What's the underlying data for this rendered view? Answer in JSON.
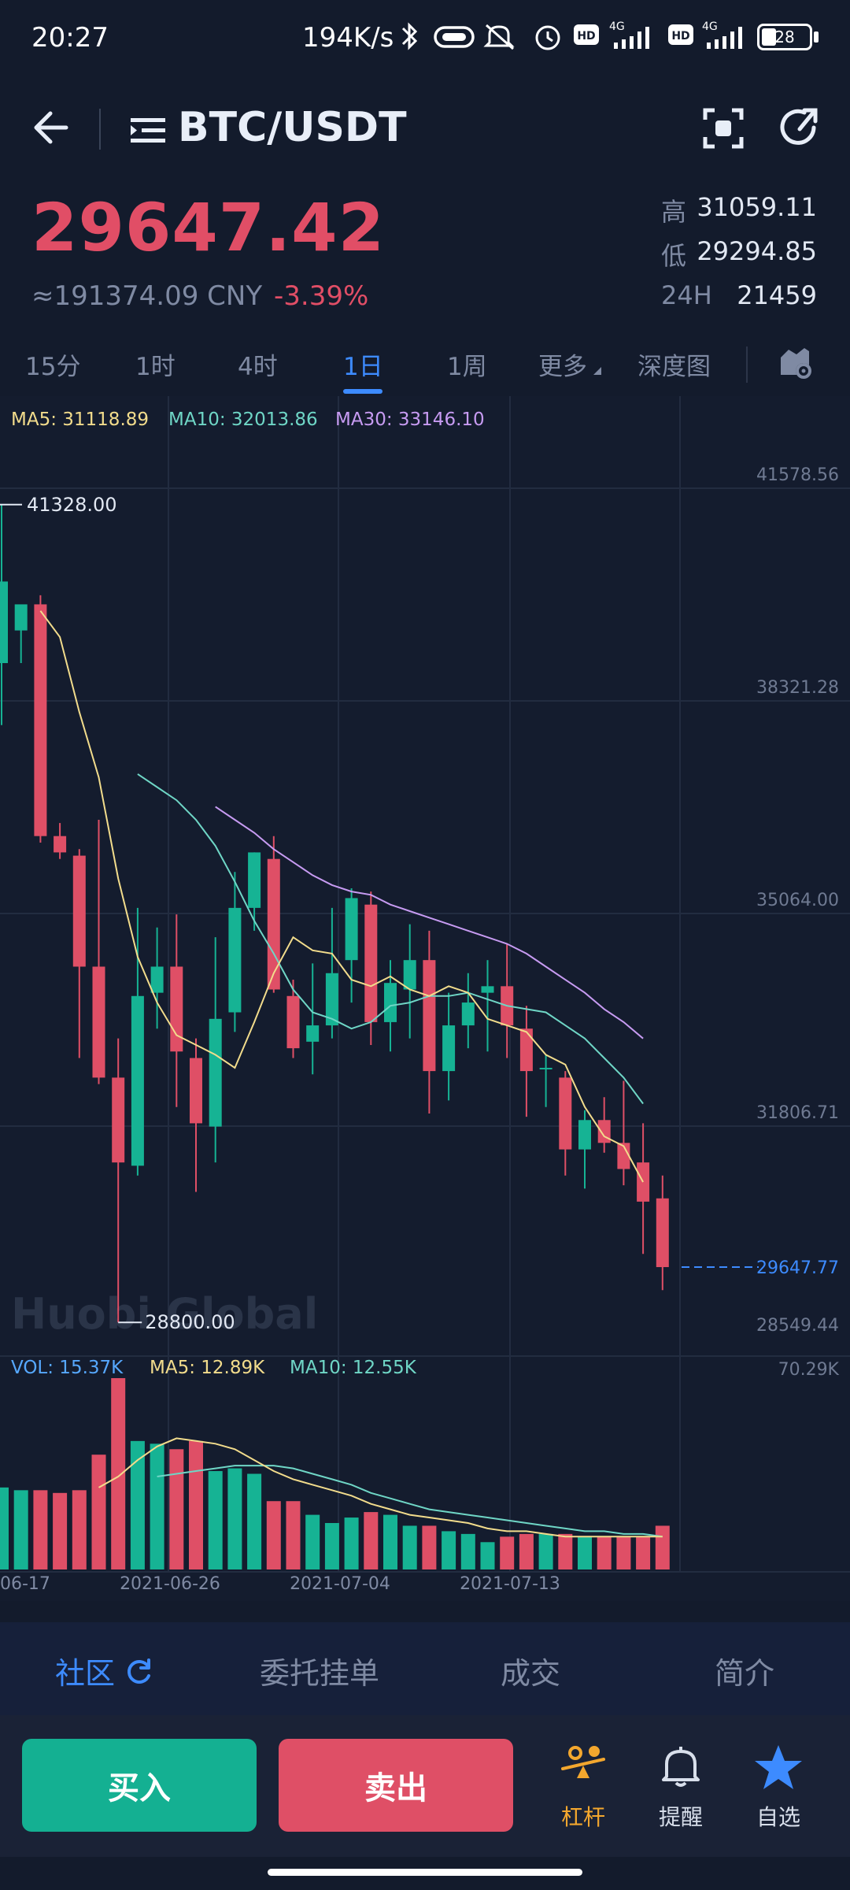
{
  "status_bar": {
    "time": "20:27",
    "net_speed": "194K/s",
    "battery": "28",
    "icons": [
      "bluetooth-icon",
      "vr-icon",
      "mute-icon",
      "alarm-icon",
      "hd-icon",
      "signal-4g-icon",
      "hd-icon",
      "signal-4g-icon",
      "battery-icon"
    ]
  },
  "header": {
    "pair": "BTC/USDT",
    "icons": [
      "back-arrow-icon",
      "menu-lines-icon",
      "scan-icon",
      "share-icon"
    ]
  },
  "price": {
    "last": "29647.42",
    "cny": "≈191374.09 CNY",
    "change": "-3.39%",
    "high_label": "高",
    "high": "31059.11",
    "low_label": "低",
    "low": "29294.85",
    "vol_label": "24H",
    "vol": "21459"
  },
  "interval_tabs": [
    {
      "label": "15分",
      "active": false
    },
    {
      "label": "1时",
      "active": false
    },
    {
      "label": "4时",
      "active": false
    },
    {
      "label": "1日",
      "active": true
    },
    {
      "label": "1周",
      "active": false
    },
    {
      "label": "更多",
      "active": false
    },
    {
      "label": "深度图",
      "active": false
    }
  ],
  "chart": {
    "ma_legend": {
      "ma5": "MA5: 31118.89",
      "ma10": "MA10: 32013.86",
      "ma30": "MA30: 33146.10"
    },
    "vol_legend": {
      "vol": "VOL: 15.37K",
      "ma5": "MA5: 12.89K",
      "ma10": "MA10: 12.55K"
    },
    "watermark": "Huobi Global",
    "max_label": "41328.00",
    "min_label": "28800.00",
    "current_label": "29647.77",
    "vol_axis_max": "70.29K",
    "colors": {
      "up": "#16b394",
      "down": "#df4f66",
      "ma5": "#f2dc8c",
      "ma10": "#6fd6c6",
      "ma30": "#c79bf2",
      "grid": "#222c40",
      "current": "#3d8bff"
    }
  },
  "chart_data": {
    "type": "candlestick",
    "y_ticks": [
      "41578.56",
      "38321.28",
      "35064.00",
      "31806.71",
      "28549.44"
    ],
    "ylim": [
      28549.44,
      41578.56
    ],
    "x_tick_labels": [
      "06-17",
      "2021-06-26",
      "2021-07-04",
      "2021-07-13"
    ],
    "candles": [
      {
        "o": 38900,
        "h": 41328,
        "l": 37950,
        "c": 40150
      },
      {
        "o": 39400,
        "h": 39780,
        "l": 38900,
        "c": 39800
      },
      {
        "o": 39800,
        "h": 39940,
        "l": 36150,
        "c": 36250
      },
      {
        "o": 36250,
        "h": 36450,
        "l": 35900,
        "c": 36000
      },
      {
        "o": 35950,
        "h": 36050,
        "l": 32850,
        "c": 34250
      },
      {
        "o": 34250,
        "h": 36500,
        "l": 32450,
        "c": 32550
      },
      {
        "o": 32550,
        "h": 33150,
        "l": 28800,
        "c": 31250
      },
      {
        "o": 31200,
        "h": 35150,
        "l": 31050,
        "c": 33800
      },
      {
        "o": 33850,
        "h": 34850,
        "l": 33300,
        "c": 34250
      },
      {
        "o": 34250,
        "h": 35050,
        "l": 32100,
        "c": 32950
      },
      {
        "o": 32850,
        "h": 33150,
        "l": 30800,
        "c": 31850
      },
      {
        "o": 31800,
        "h": 34700,
        "l": 31250,
        "c": 33450
      },
      {
        "o": 33550,
        "h": 35700,
        "l": 33250,
        "c": 35150
      },
      {
        "o": 35150,
        "h": 36000,
        "l": 34800,
        "c": 36000
      },
      {
        "o": 35900,
        "h": 36250,
        "l": 33850,
        "c": 33900
      },
      {
        "o": 33800,
        "h": 34050,
        "l": 32850,
        "c": 33000
      },
      {
        "o": 33100,
        "h": 34300,
        "l": 32600,
        "c": 33350
      },
      {
        "o": 33350,
        "h": 35150,
        "l": 33150,
        "c": 34150
      },
      {
        "o": 34350,
        "h": 35450,
        "l": 33700,
        "c": 35300
      },
      {
        "o": 35200,
        "h": 35400,
        "l": 33050,
        "c": 33400
      },
      {
        "o": 33400,
        "h": 34350,
        "l": 32950,
        "c": 34000
      },
      {
        "o": 33900,
        "h": 34900,
        "l": 33150,
        "c": 34350
      },
      {
        "o": 34350,
        "h": 34800,
        "l": 32000,
        "c": 32650
      },
      {
        "o": 32650,
        "h": 33850,
        "l": 32200,
        "c": 33350
      },
      {
        "o": 33350,
        "h": 34150,
        "l": 33000,
        "c": 33700
      },
      {
        "o": 33850,
        "h": 34350,
        "l": 32950,
        "c": 33950
      },
      {
        "o": 33950,
        "h": 34600,
        "l": 32850,
        "c": 33350
      },
      {
        "o": 33300,
        "h": 33650,
        "l": 31950,
        "c": 32650
      },
      {
        "o": 32700,
        "h": 32900,
        "l": 32100,
        "c": 32700
      },
      {
        "o": 32550,
        "h": 32650,
        "l": 31050,
        "c": 31450
      },
      {
        "o": 31450,
        "h": 32050,
        "l": 30850,
        "c": 31900
      },
      {
        "o": 31900,
        "h": 32250,
        "l": 31400,
        "c": 31550
      },
      {
        "o": 31550,
        "h": 32500,
        "l": 30900,
        "c": 31150
      },
      {
        "o": 31250,
        "h": 31850,
        "l": 29850,
        "c": 30650
      },
      {
        "o": 30700,
        "h": 31050,
        "l": 29294,
        "c": 29647
      }
    ],
    "ma5": [
      39700,
      39300,
      38150,
      37150,
      35600,
      34400,
      33700,
      33200,
      33050,
      32900,
      32700,
      33400,
      34150,
      34700,
      34500,
      34450,
      34050,
      33950,
      34100,
      33900,
      33800,
      33950,
      33850,
      33450,
      33350,
      33250,
      32900,
      32750,
      32100,
      31650,
      31500,
      30950
    ],
    "ma10": [
      37200,
      37000,
      36800,
      36500,
      36100,
      35550,
      34950,
      34450,
      33900,
      33550,
      33450,
      33300,
      33400,
      33650,
      33700,
      33800,
      33800,
      33850,
      33750,
      33650,
      33600,
      33550,
      33350,
      33150,
      32850,
      32550,
      32150
    ],
    "ma30": [
      36700,
      36500,
      36300,
      36050,
      35850,
      35650,
      35500,
      35400,
      35350,
      35200,
      35100,
      35000,
      34900,
      34800,
      34700,
      34600,
      34450,
      34250,
      34050,
      33850,
      33600,
      33400,
      33150
    ],
    "volume": {
      "ylim": [
        0,
        70.29
      ],
      "values": [
        30,
        29,
        29,
        28,
        29,
        42,
        70,
        47,
        46,
        44,
        47,
        36,
        37,
        35,
        25,
        25,
        20,
        17,
        19,
        21,
        20,
        16,
        16,
        14,
        13,
        10,
        12,
        13,
        13,
        13,
        12,
        12,
        12,
        12,
        16
      ],
      "ma5": [
        30,
        34,
        40,
        45,
        48,
        47,
        46,
        44,
        40,
        36,
        33,
        31,
        29,
        27,
        24,
        22,
        20,
        19,
        18,
        17,
        15,
        14,
        14,
        13,
        12,
        12,
        12,
        12,
        12,
        12
      ],
      "ma10": [
        34,
        35,
        36,
        37,
        38,
        38,
        38,
        37,
        35,
        33,
        31,
        28,
        26,
        24,
        22,
        21,
        20,
        19,
        18,
        17,
        16,
        15,
        14,
        14,
        13,
        13,
        12
      ]
    }
  },
  "bottom_tabs": [
    {
      "label": "社区",
      "active": true
    },
    {
      "label": "委托挂单",
      "active": false
    },
    {
      "label": "成交",
      "active": false
    },
    {
      "label": "简介",
      "active": false
    }
  ],
  "action_bar": {
    "buy": "买入",
    "sell": "卖出",
    "leverage": "杠杆",
    "alert": "提醒",
    "watchlist": "自选"
  }
}
